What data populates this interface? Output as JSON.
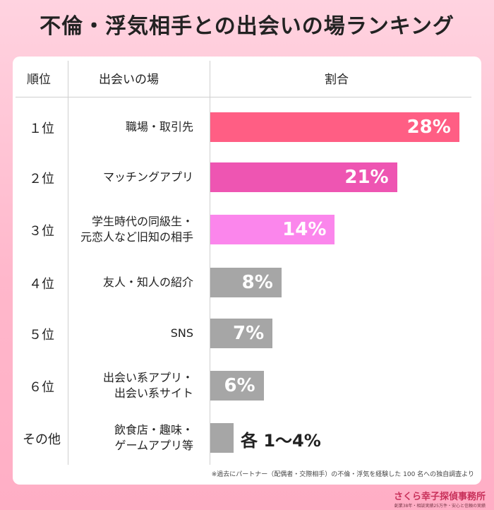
{
  "title": "不倫・浮気相手との出会いの場ランキング",
  "headers": {
    "rank": "順位",
    "place": "出会いの場",
    "ratio": "割合"
  },
  "chart_data": {
    "type": "bar",
    "orientation": "horizontal",
    "title": "不倫・浮気相手との出会いの場ランキング",
    "categories": [
      "職場・取引先",
      "マッチングアプリ",
      "学生時代の同級生・\n元恋人など旧知の相手",
      "友人・知人の紹介",
      "SNS",
      "出会い系アプリ・\n出会い系サイト",
      "飲食店・趣味・\nゲームアプリ等"
    ],
    "ranks": [
      "１位",
      "２位",
      "３位",
      "４位",
      "５位",
      "６位",
      "その他"
    ],
    "values": [
      28,
      21,
      14,
      8,
      7,
      6,
      1
    ],
    "value_labels": [
      "28%",
      "21%",
      "14%",
      "8%",
      "7%",
      "6%",
      "各 1〜4%"
    ],
    "colors": [
      "#ff5e84",
      "#ee55b2",
      "#fb86ec",
      "#a6a6a6",
      "#a6a6a6",
      "#a6a6a6",
      "#a6a6a6"
    ],
    "xlim": [
      0,
      30
    ],
    "grid": false,
    "legend": "none"
  },
  "footnote": "※過去にパートナー（配偶者・交際相手）の不倫・浮気を経験した 100 名への独自調査より",
  "brand": {
    "name": "さくら幸子探偵事務所",
    "tagline": "創業38年・相談実績25万件・安心と信頼の実績"
  }
}
